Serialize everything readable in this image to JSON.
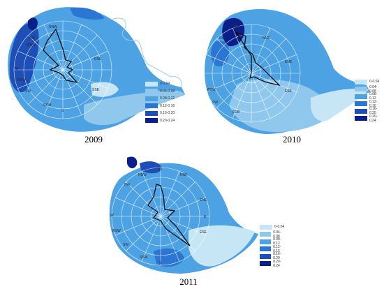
{
  "legend_colors": [
    "#c6e6f5",
    "#8fc8ec",
    "#4da2e3",
    "#2a76d2",
    "#1e4fb6",
    "#0b1f8a"
  ],
  "panels": [
    {
      "year": "2009",
      "legend": [
        "0-0.04",
        "0.04-0.08",
        "0.08-0.12",
        "0.12-0.16",
        "0.16-0.20",
        "0.20-0.24"
      ],
      "directions": [
        "NNW",
        "WNW",
        "NW",
        "ENE",
        "W",
        "WSW",
        "SW",
        "SSW",
        "S",
        "SSE"
      ]
    },
    {
      "year": "2010",
      "legend": [
        "0-0.04",
        "0.04-0.08",
        "0.08-0.12",
        "0.12-0.16",
        "0.16-0.20",
        "0.20-0.24"
      ],
      "directions": [
        "NNW",
        "NW",
        "NNE",
        "ENE",
        "WSW",
        "SW",
        "SSW",
        "ESE"
      ]
    },
    {
      "year": "2011",
      "legend": [
        "0-0.04",
        "0.04-0.08",
        "0.08-0.12",
        "0.12-0.16",
        "0.16-0.20",
        "0.20-0.24"
      ],
      "directions": [
        "N",
        "NNW",
        "NNE",
        "NW",
        "ENE",
        "E",
        "W",
        "WSW",
        "SW",
        "ESE",
        "SSW",
        "S"
      ]
    }
  ]
}
